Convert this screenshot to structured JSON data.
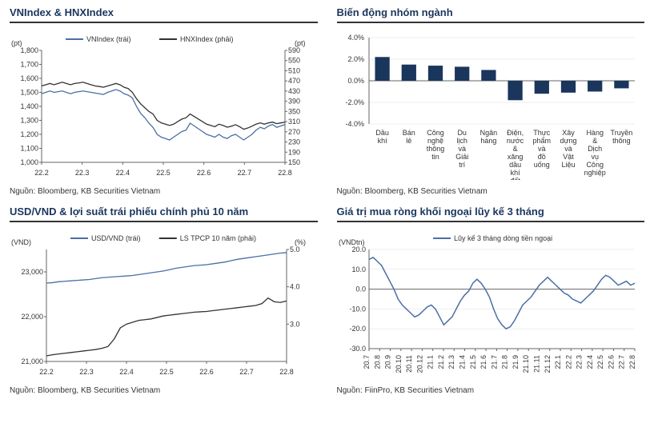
{
  "colors": {
    "primary": "#4a6fa5",
    "secondary": "#333333",
    "title": "#1a365d",
    "axis": "#666666",
    "grid": "#cccccc",
    "background": "#ffffff"
  },
  "panels": {
    "topleft": {
      "title": "VNIndex & HNXIndex",
      "y1_label": "(pt)",
      "y2_label": "(pt)",
      "legend": [
        {
          "label": "VNIndex (trái)",
          "color": "#4a6fa5"
        },
        {
          "label": "HNXIndex (phải)",
          "color": "#333333"
        }
      ],
      "y1_ticks": [
        1000,
        1100,
        1200,
        1300,
        1400,
        1500,
        1600,
        1700,
        1800
      ],
      "y2_ticks": [
        150,
        190,
        230,
        270,
        310,
        350,
        390,
        430,
        470,
        510,
        550,
        590
      ],
      "x_ticks": [
        "22.2",
        "22.3",
        "22.4",
        "22.5",
        "22.6",
        "22.7",
        "22.8"
      ],
      "series1": [
        1490,
        1500,
        1510,
        1500,
        1505,
        1510,
        1500,
        1490,
        1500,
        1505,
        1510,
        1505,
        1500,
        1495,
        1490,
        1485,
        1500,
        1510,
        1520,
        1510,
        1490,
        1480,
        1460,
        1400,
        1350,
        1320,
        1280,
        1250,
        1200,
        1180,
        1170,
        1160,
        1180,
        1200,
        1220,
        1230,
        1280,
        1260,
        1240,
        1220,
        1200,
        1190,
        1180,
        1200,
        1180,
        1170,
        1190,
        1200,
        1180,
        1160,
        1180,
        1200,
        1230,
        1250,
        1240,
        1260,
        1270,
        1250,
        1260,
        1270
      ],
      "series2": [
        450,
        455,
        460,
        455,
        460,
        465,
        460,
        455,
        460,
        462,
        465,
        460,
        455,
        450,
        448,
        445,
        450,
        455,
        460,
        455,
        445,
        440,
        425,
        400,
        380,
        365,
        350,
        340,
        315,
        305,
        300,
        295,
        300,
        310,
        320,
        325,
        340,
        330,
        320,
        310,
        300,
        295,
        290,
        300,
        295,
        288,
        292,
        298,
        290,
        280,
        285,
        292,
        300,
        305,
        300,
        305,
        308,
        302,
        305,
        308
      ],
      "source": "Nguồn: Bloomberg, KB Securities Vietnam"
    },
    "topright": {
      "title": "Biến động nhóm ngành",
      "y_ticks": [
        "-4.0%",
        "-2.0%",
        "0.0%",
        "2.0%",
        "4.0%"
      ],
      "y_values": [
        -4,
        -2,
        0,
        2,
        4
      ],
      "categories": [
        "Dầu khí",
        "Bán lẻ",
        "Công nghệ thông tin",
        "Du lịch và Giải trí",
        "Ngân hàng",
        "Điện, nước & xăng dầu khí đốt",
        "Thực phẩm và đồ uống",
        "Xây dựng và Vật Liệu",
        "Hàng & Dịch vụ Công nghiệp",
        "Truyền thông"
      ],
      "values": [
        2.2,
        1.5,
        1.4,
        1.3,
        1.0,
        -1.8,
        -1.2,
        -1.1,
        -1.0,
        -0.7
      ],
      "bar_color": "#1a365d",
      "source": "Nguồn: Bloomberg, KB Securities Vietnam"
    },
    "bottomleft": {
      "title": "USD/VND & lợi suất trái phiếu chính phủ 10 năm",
      "y1_label": "(VND)",
      "y2_label": "(%)",
      "legend": [
        {
          "label": "USD/VND (trái)",
          "color": "#4a6fa5"
        },
        {
          "label": "LS TPCP 10 năm (phải)",
          "color": "#333333"
        }
      ],
      "y1_ticks": [
        21000,
        22000,
        23000
      ],
      "y2_ticks": [
        "3.0",
        "4.0",
        "5.0"
      ],
      "x_ticks": [
        "22.2",
        "22.3",
        "22.4",
        "22.5",
        "22.6",
        "22.7",
        "22.8"
      ],
      "series1": [
        22750,
        22760,
        22780,
        22790,
        22800,
        22810,
        22820,
        22830,
        22850,
        22870,
        22880,
        22890,
        22900,
        22910,
        22920,
        22940,
        22960,
        22980,
        23000,
        23020,
        23050,
        23080,
        23100,
        23120,
        23140,
        23150,
        23160,
        23180,
        23200,
        23220,
        23250,
        23280,
        23300,
        23320,
        23340,
        23360,
        23380,
        23400,
        23420,
        23430
      ],
      "series2": [
        2.15,
        2.18,
        2.2,
        2.22,
        2.24,
        2.26,
        2.28,
        2.3,
        2.32,
        2.35,
        2.4,
        2.6,
        2.9,
        3.0,
        3.05,
        3.1,
        3.12,
        3.14,
        3.18,
        3.22,
        3.24,
        3.26,
        3.28,
        3.3,
        3.32,
        3.33,
        3.34,
        3.36,
        3.38,
        3.4,
        3.42,
        3.44,
        3.46,
        3.48,
        3.5,
        3.55,
        3.7,
        3.6,
        3.58,
        3.62
      ],
      "source": "Nguồn: Bloomberg, KB Securities Vietnam"
    },
    "bottomright": {
      "title": "Giá trị mua ròng khối ngoại lũy kế 3 tháng",
      "y_label": "(VNDtn)",
      "legend": [
        {
          "label": "Lũy kế 3 tháng dòng tiền ngoại",
          "color": "#4a6fa5"
        }
      ],
      "y_ticks": [
        "-30.0",
        "-20.0",
        "-10.0",
        "0.0",
        "10.0",
        "20.0"
      ],
      "y_values": [
        -30,
        -20,
        -10,
        0,
        10,
        20
      ],
      "x_ticks": [
        "20.7",
        "20.8",
        "20.9",
        "20.10",
        "20.11",
        "20.12",
        "21.1",
        "21.2",
        "21.3",
        "21.4",
        "21.5",
        "21.6",
        "21.7",
        "21.8",
        "21.9",
        "21.10",
        "21.11",
        "21.12",
        "22.1",
        "22.2",
        "22.3",
        "22.4",
        "22.5",
        "22.6",
        "22.7",
        "22.8"
      ],
      "series": [
        15,
        16,
        14,
        12,
        8,
        4,
        0,
        -5,
        -8,
        -10,
        -12,
        -14,
        -13,
        -11,
        -9,
        -8,
        -10,
        -14,
        -18,
        -16,
        -14,
        -10,
        -6,
        -3,
        -1,
        3,
        5,
        3,
        0,
        -4,
        -10,
        -15,
        -18,
        -20,
        -19,
        -16,
        -12,
        -8,
        -6,
        -4,
        -1,
        2,
        4,
        6,
        4,
        2,
        0,
        -2,
        -3,
        -5,
        -6,
        -7,
        -5,
        -3,
        -1,
        2,
        5,
        7,
        6,
        4,
        2,
        3,
        4,
        2,
        3
      ],
      "source": "Nguồn: FiinPro, KB Securities Vietnam"
    }
  }
}
